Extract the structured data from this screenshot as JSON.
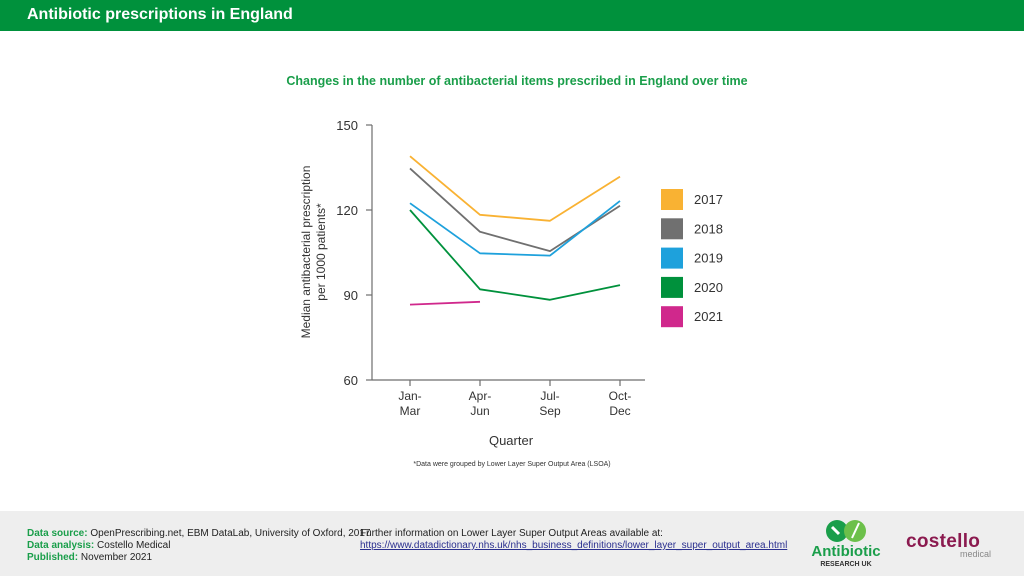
{
  "header": {
    "title": "Antibiotic prescriptions in England"
  },
  "footnote": "*Data were grouped by Lower Layer Super Output Area (LSOA)",
  "footer": {
    "data_source_label": "Data source:",
    "data_source": "OpenPrescribing.net, EBM DataLab, University of Oxford, 2017",
    "data_analysis_label": "Data analysis:",
    "data_analysis": "Costello Medical",
    "published_label": "Published:",
    "published": "November 2021",
    "info_text": "Further information on Lower Layer Super Output Areas available at:",
    "info_link": "https://www.datadictionary.nhs.uk/nhs_business_definitions/lower_layer_super_output_area.html",
    "logo_abr_name": "Antibiotic",
    "logo_abr_sub": "RESEARCH UK",
    "logo_cm_name": "costello",
    "logo_cm_sub": "medical"
  },
  "chart_data": {
    "type": "line",
    "title": "Changes in the number of antibacterial items prescribed in England over time",
    "xlabel": "Quarter",
    "ylabel_lines": [
      "Median antibacterial prescription",
      "per 1000 patients*"
    ],
    "categories": [
      [
        "Jan-",
        "Mar"
      ],
      [
        "Apr-",
        "Jun"
      ],
      [
        "Jul-",
        "Sep"
      ],
      [
        "Oct-",
        "Dec"
      ]
    ],
    "ylim": [
      60,
      150
    ],
    "yticks": [
      60,
      90,
      120,
      150
    ],
    "grid": false,
    "legend_position": "right",
    "series": [
      {
        "name": "2017",
        "color": "#f9b233",
        "values": [
          139,
          118.3,
          116.2,
          131.8
        ]
      },
      {
        "name": "2018",
        "color": "#707070",
        "values": [
          134.7,
          112.3,
          105.5,
          121.5
        ]
      },
      {
        "name": "2019",
        "color": "#1ea1dc",
        "values": [
          122.4,
          104.7,
          103.9,
          123.2
        ]
      },
      {
        "name": "2020",
        "color": "#00913c",
        "values": [
          120,
          92,
          88.3,
          93.5
        ]
      },
      {
        "name": "2021",
        "color": "#d0288c",
        "values": [
          86.6,
          87.6,
          null,
          null
        ]
      }
    ]
  }
}
